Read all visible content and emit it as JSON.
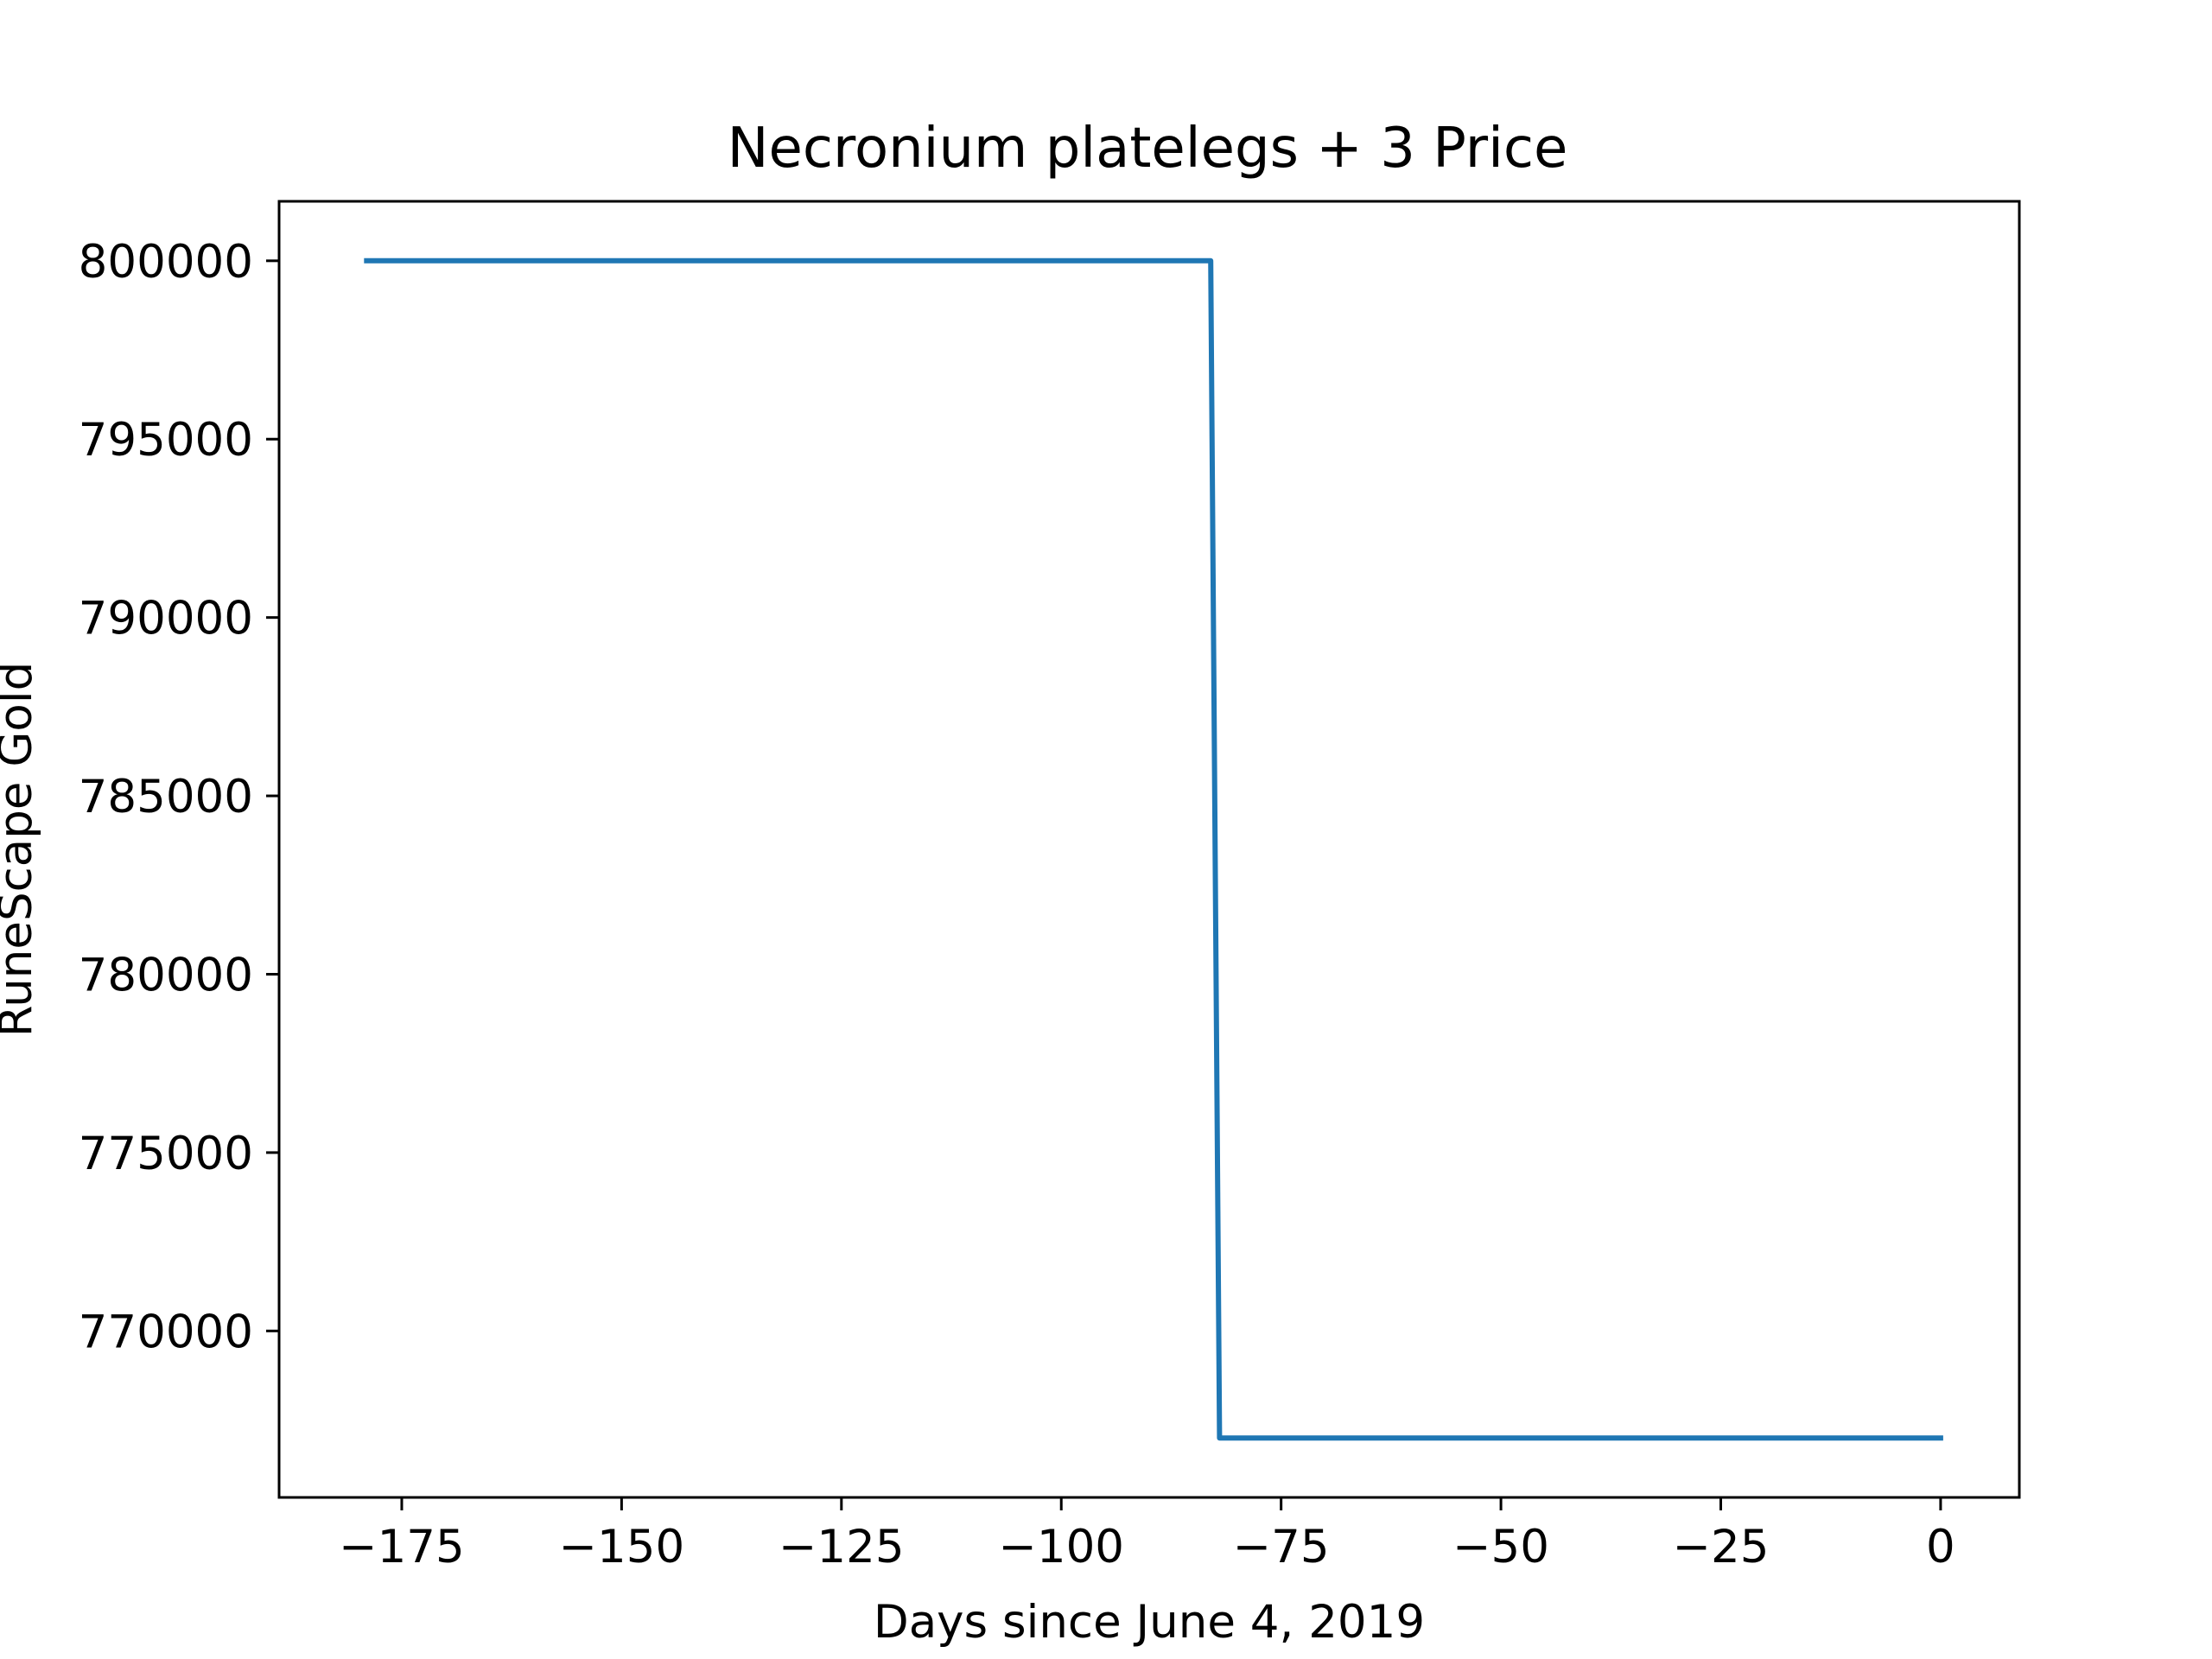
{
  "chart_data": {
    "type": "line",
    "title": "Necronium platelegs + 3 Price",
    "xlabel": "Days since June 4, 2019",
    "ylabel": "RuneScape Gold",
    "xlim": [
      -188.95,
      8.95
    ],
    "ylim": [
      765333,
      801667
    ],
    "grid": false,
    "legend": "none",
    "x_ticks": [
      -175,
      -150,
      -125,
      -100,
      -75,
      -50,
      -25,
      0
    ],
    "x_tick_labels": [
      "−175",
      "−150",
      "−125",
      "−100",
      "−75",
      "−50",
      "−25",
      "0"
    ],
    "y_ticks": [
      770000,
      775000,
      780000,
      785000,
      790000,
      795000,
      800000
    ],
    "y_tick_labels": [
      "770000",
      "775000",
      "780000",
      "785000",
      "790000",
      "795000",
      "800000"
    ],
    "series": [
      {
        "color": "#1f77b4",
        "x": [
          -179,
          -83,
          -82,
          0
        ],
        "y": [
          800000,
          800000,
          767000,
          767000
        ]
      }
    ]
  }
}
